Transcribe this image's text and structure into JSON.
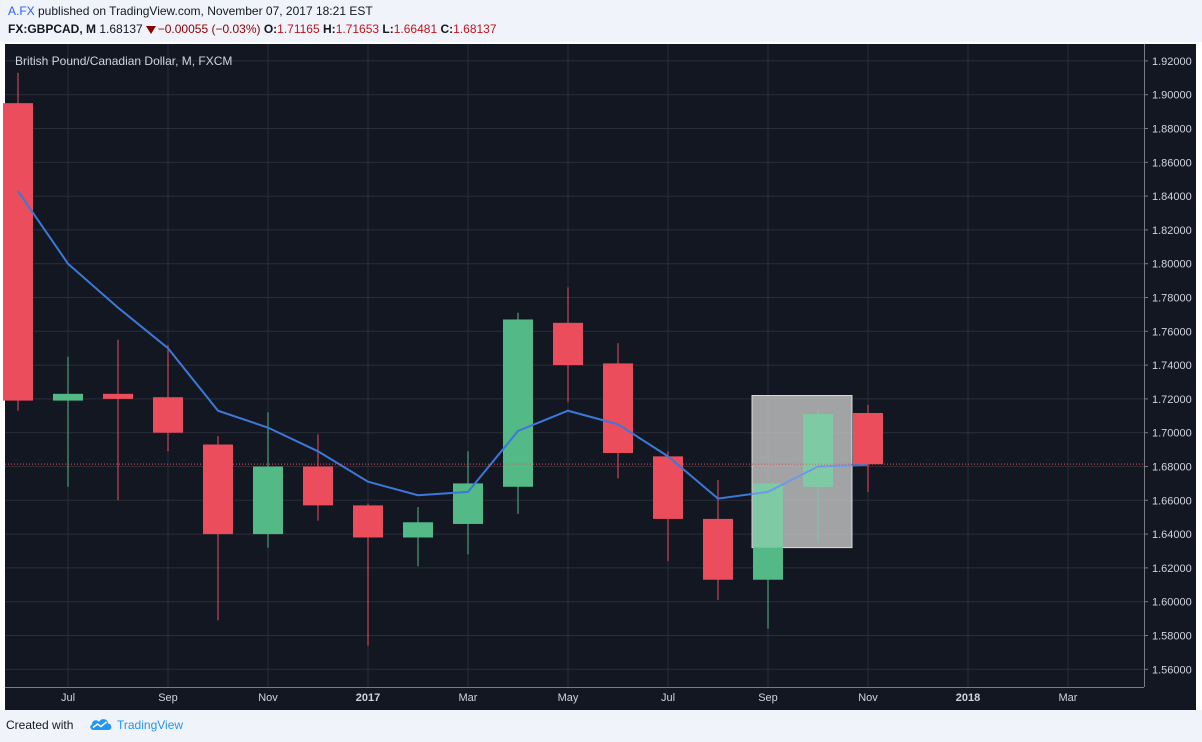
{
  "header": {
    "user": "A.FX",
    "published_text": " published on TradingView.com, November 07, 2017 18:21 EST",
    "symbol": "FX:GBPCAD, M",
    "price": "1.68137",
    "change": "−0.00055 (−0.03%)",
    "o_label": "O:",
    "o_value": "1.71165",
    "h_label": "H:",
    "h_value": "1.71653",
    "l_label": "L:",
    "l_value": "1.66481",
    "c_label": "C:",
    "c_value": "1.68137"
  },
  "footer": {
    "created_with": "Created with",
    "brand": "TradingView"
  },
  "colors": {
    "up": "#53b987",
    "down": "#eb4d5c",
    "ma": "#3c78d8",
    "background": "#131722",
    "grid": "#2a2e39"
  },
  "chart_data": {
    "type": "candlestick",
    "title": "British Pound/Canadian Dollar, M, FXCM",
    "ylim": [
      1.55,
      1.93
    ],
    "yticks": [
      "1.56000",
      "1.58000",
      "1.60000",
      "1.62000",
      "1.64000",
      "1.66000",
      "1.68000",
      "1.70000",
      "1.72000",
      "1.74000",
      "1.76000",
      "1.78000",
      "1.80000",
      "1.82000",
      "1.84000",
      "1.86000",
      "1.88000",
      "1.90000",
      "1.92000"
    ],
    "xtick_labels": [
      {
        "label": "Jul",
        "idx": 1,
        "bold": false
      },
      {
        "label": "Sep",
        "idx": 3,
        "bold": false
      },
      {
        "label": "Nov",
        "idx": 5,
        "bold": false
      },
      {
        "label": "2017",
        "idx": 7,
        "bold": true
      },
      {
        "label": "Mar",
        "idx": 9,
        "bold": false
      },
      {
        "label": "May",
        "idx": 11,
        "bold": false
      },
      {
        "label": "Jul",
        "idx": 13,
        "bold": false
      },
      {
        "label": "Sep",
        "idx": 15,
        "bold": false
      },
      {
        "label": "Nov",
        "idx": 17,
        "bold": false
      },
      {
        "label": "2018",
        "idx": 19,
        "bold": true
      },
      {
        "label": "Mar",
        "idx": 21,
        "bold": false
      }
    ],
    "candles": [
      {
        "month": "2016-06",
        "o": 1.895,
        "h": 1.913,
        "l": 1.713,
        "c": 1.719
      },
      {
        "month": "2016-07",
        "o": 1.719,
        "h": 1.745,
        "l": 1.668,
        "c": 1.723
      },
      {
        "month": "2016-08",
        "o": 1.723,
        "h": 1.755,
        "l": 1.66,
        "c": 1.72
      },
      {
        "month": "2016-09",
        "o": 1.721,
        "h": 1.752,
        "l": 1.689,
        "c": 1.7
      },
      {
        "month": "2016-10",
        "o": 1.693,
        "h": 1.698,
        "l": 1.589,
        "c": 1.64
      },
      {
        "month": "2016-11",
        "o": 1.64,
        "h": 1.712,
        "l": 1.632,
        "c": 1.68
      },
      {
        "month": "2016-12",
        "o": 1.68,
        "h": 1.699,
        "l": 1.648,
        "c": 1.657
      },
      {
        "month": "2017-01",
        "o": 1.657,
        "h": 1.658,
        "l": 1.574,
        "c": 1.638
      },
      {
        "month": "2017-02",
        "o": 1.638,
        "h": 1.656,
        "l": 1.621,
        "c": 1.647
      },
      {
        "month": "2017-03",
        "o": 1.646,
        "h": 1.689,
        "l": 1.628,
        "c": 1.67
      },
      {
        "month": "2017-04",
        "o": 1.668,
        "h": 1.771,
        "l": 1.652,
        "c": 1.767
      },
      {
        "month": "2017-05",
        "o": 1.765,
        "h": 1.786,
        "l": 1.718,
        "c": 1.74
      },
      {
        "month": "2017-06",
        "o": 1.741,
        "h": 1.753,
        "l": 1.673,
        "c": 1.688
      },
      {
        "month": "2017-07",
        "o": 1.686,
        "h": 1.689,
        "l": 1.624,
        "c": 1.649
      },
      {
        "month": "2017-08",
        "o": 1.649,
        "h": 1.672,
        "l": 1.601,
        "c": 1.613
      },
      {
        "month": "2017-09",
        "o": 1.613,
        "h": 1.67,
        "l": 1.584,
        "c": 1.67
      },
      {
        "month": "2017-10",
        "o": 1.668,
        "h": 1.714,
        "l": 1.635,
        "c": 1.711
      },
      {
        "month": "2017-11",
        "o": 1.71165,
        "h": 1.71653,
        "l": 1.66481,
        "c": 1.68137
      }
    ],
    "moving_average": {
      "start_idx": 0,
      "values": [
        1.843,
        1.8,
        1.774,
        1.75,
        1.713,
        1.703,
        1.689,
        1.671,
        1.663,
        1.665,
        1.701,
        1.713,
        1.705,
        1.686,
        1.661,
        1.665,
        1.68,
        1.681
      ]
    },
    "current_price_line": 1.68137,
    "highlight_box": {
      "from_idx": 15,
      "to_idx": 17,
      "top": 1.722,
      "bottom": 1.632
    }
  }
}
